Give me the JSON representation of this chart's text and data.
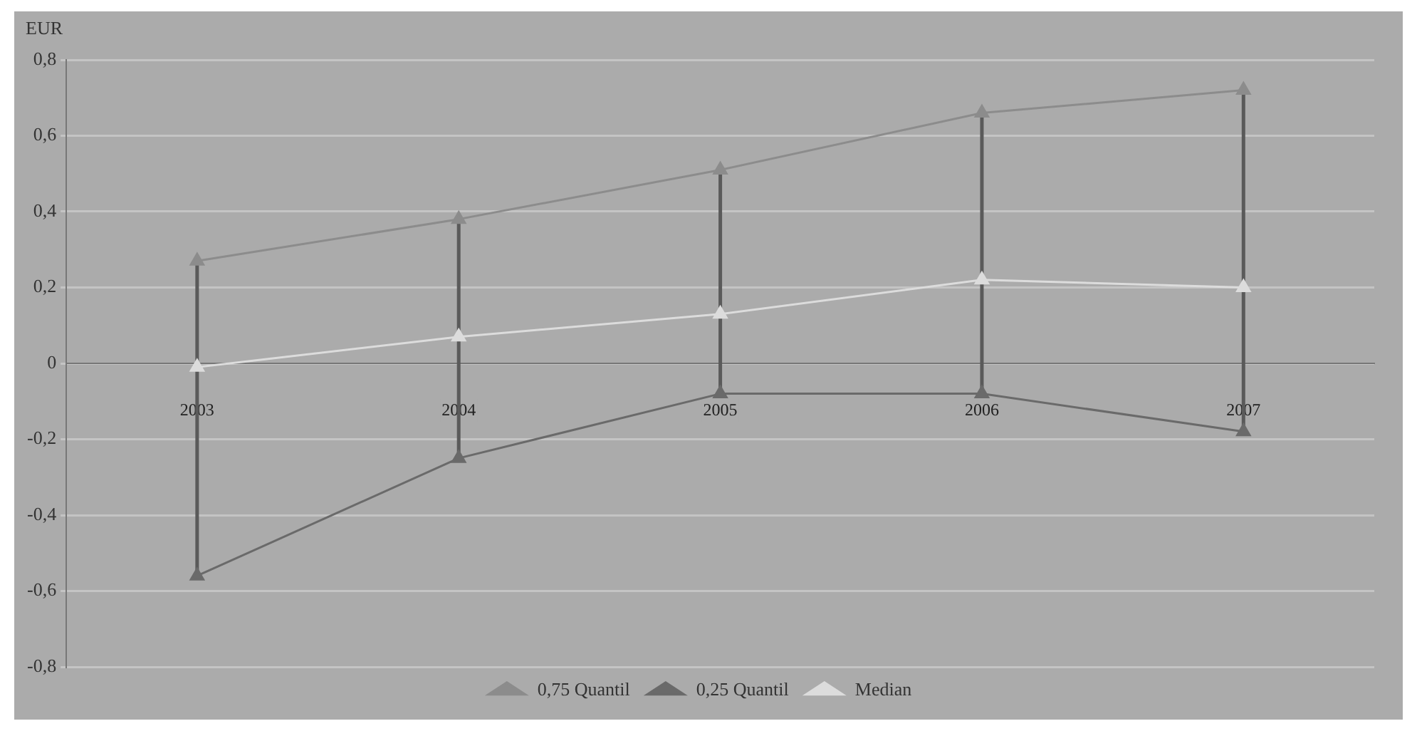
{
  "chart_data": {
    "type": "line",
    "ylabel": "EUR",
    "categories": [
      "2003",
      "2004",
      "2005",
      "2006",
      "2007"
    ],
    "series": [
      {
        "name": "0,75 Quantil",
        "color": "#8c8c8c",
        "values": [
          0.27,
          0.38,
          0.51,
          0.66,
          0.72
        ]
      },
      {
        "name": "0,25 Quantil",
        "color": "#6a6a6a",
        "values": [
          -0.56,
          -0.25,
          -0.08,
          -0.08,
          -0.18
        ]
      },
      {
        "name": "Median",
        "color": "#dcdcdc",
        "values": [
          -0.01,
          0.07,
          0.13,
          0.22,
          0.2
        ],
        "errors": [
          [
            -0.56,
            0.27
          ],
          [
            -0.25,
            0.38
          ],
          [
            -0.08,
            0.51
          ],
          [
            -0.08,
            0.66
          ],
          [
            -0.18,
            0.72
          ]
        ]
      }
    ],
    "ylim": [
      -0.8,
      0.8
    ],
    "yticks": [
      {
        "value": -0.8,
        "label": "-0,8"
      },
      {
        "value": -0.6,
        "label": "-0,6"
      },
      {
        "value": -0.4,
        "label": "-0,4"
      },
      {
        "value": -0.2,
        "label": "-0,2"
      },
      0,
      {
        "value": 0.2,
        "label": "0,2"
      },
      {
        "value": 0.4,
        "label": "0,4"
      },
      {
        "value": 0.6,
        "label": "0,6"
      },
      {
        "value": 0.8,
        "label": "0,8"
      }
    ],
    "grid": "y",
    "legend": "bottom",
    "marker": "triangle",
    "line_style": "solid"
  }
}
